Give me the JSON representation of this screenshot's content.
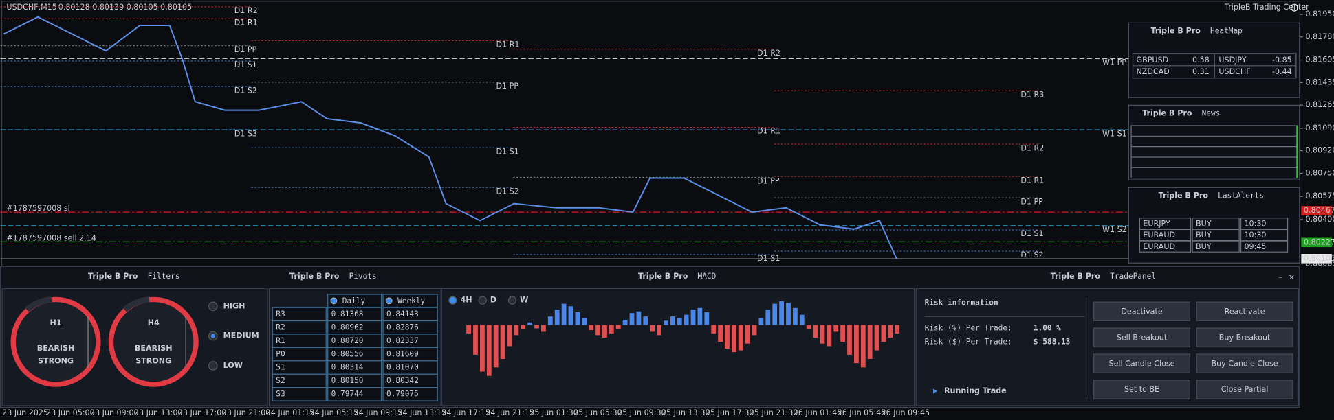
{
  "header": {
    "symbol": "USDCHF,M15",
    "ohlc": "0.80128 0.80139 0.80105 0.80105",
    "brand": "TripleB Trading Center"
  },
  "price_chart": {
    "ylim": [
      0.80065,
      0.8195
    ],
    "yticks": [
      {
        "value": 0.8195,
        "label": "0.81950"
      },
      {
        "value": 0.8178,
        "label": "0.81780"
      },
      0.81605,
      0.81435,
      0.81265,
      {
        "value": 0.8109,
        "label": "0.81090"
      },
      {
        "value": 0.8092,
        "label": "0.80920"
      },
      {
        "value": 0.8075,
        "label": "0.80750"
      },
      0.80575,
      {
        "value": 0.804,
        "label": "0.80400"
      },
      0.80065
    ],
    "markers": [
      0.80467,
      0.80227,
      0.80105
    ],
    "close": [
      0.81803,
      0.81931,
      0.81803,
      0.81674,
      0.81867,
      0.81867,
      0.8161,
      0.8129,
      0.81226,
      0.81226,
      0.8129,
      0.81162,
      0.8113,
      0.81033,
      0.80873,
      0.80521,
      0.80392,
      0.80521,
      0.80489,
      0.80489,
      0.80456,
      0.80713,
      0.80713,
      0.80585,
      0.80456,
      0.80489,
      0.8036,
      0.80328,
      0.80392,
      0.80104
    ],
    "levels": [
      "D1 R2",
      "D1 R1",
      "D1 PP",
      "D1 S1",
      "D1 S2",
      "D1 S3",
      "D1 R1",
      "D1 PP",
      "D1 S1",
      "D1 S2",
      "D1 R2",
      "D1 R1",
      "D1 PP",
      "D1 S1",
      "D1 R3",
      "D1 R2",
      "D1 R1",
      "D1 PP",
      "D1 S1",
      "D1 S2",
      "W1 PP",
      "W1 S1",
      "W1 S2"
    ],
    "orders": [
      "#1787597008 sl",
      "#1787597008 sell 2.14"
    ],
    "x_labels": [
      "23 Jun 2025",
      "23 Jun 05:00",
      "23 Jun 09:00",
      "23 Jun 13:00",
      "23 Jun 17:00",
      "23 Jun 21:00",
      "24 Jun 01:15",
      "24 Jun 05:15",
      "24 Jun 09:15",
      "24 Jun 13:15",
      "24 Jun 17:15",
      "24 Jun 21:15",
      "25 Jun 01:30",
      "25 Jun 05:30",
      "25 Jun 09:30",
      "25 Jun 13:30",
      "25 Jun 17:30",
      "25 Jun 21:30",
      "26 Jun 01:45",
      "26 Jun 05:45",
      "26 Jun 09:45"
    ]
  },
  "heatmap": {
    "brand": "Triple B Pro",
    "title": "HeatMap",
    "cells": [
      [
        "GBPUSD",
        "0.58"
      ],
      [
        "USDJPY",
        "-0.85"
      ],
      [
        "NZDCAD",
        "0.31"
      ],
      [
        "USDCHF",
        "-0.44"
      ]
    ]
  },
  "news": {
    "brand": "Triple B Pro",
    "title": "News"
  },
  "alerts": {
    "brand": "Triple B Pro",
    "title": "LastAlerts",
    "rows": [
      [
        "EURJPY",
        "BUY",
        "10:30"
      ],
      [
        "EURAUD",
        "BUY",
        "10:30"
      ],
      [
        "EURAUD",
        "BUY",
        "09:45"
      ]
    ]
  },
  "filters": {
    "brand": "Triple B Pro",
    "title": "Filters",
    "gauges": [
      {
        "tf": "H1",
        "state": "BEARISH",
        "strength": "STRONG"
      },
      {
        "tf": "H4",
        "state": "BEARISH",
        "strength": "STRONG"
      }
    ],
    "options": [
      "HIGH",
      "MEDIUM",
      "LOW"
    ],
    "selected_option": 1
  },
  "pivots": {
    "brand": "Triple B Pro",
    "title": "Pivots",
    "columns": [
      "Daily",
      "Weekly"
    ],
    "rows": [
      [
        "R3",
        "0.81368",
        "0.84143"
      ],
      [
        "R2",
        "0.80962",
        "0.82876"
      ],
      [
        "R1",
        "0.80720",
        "0.82337"
      ],
      [
        "P0",
        "0.80556",
        "0.81609"
      ],
      [
        "S1",
        "0.80314",
        "0.81070"
      ],
      [
        "S2",
        "0.80150",
        "0.80342"
      ],
      [
        "S3",
        "0.79744",
        "0.79075"
      ]
    ]
  },
  "macd": {
    "brand": "Triple B Pro",
    "title": "MACD",
    "timeframes": [
      "4H",
      "D",
      "W"
    ],
    "selected_timeframe": 0,
    "histogram": [
      -10,
      -35,
      -55,
      -60,
      -50,
      -40,
      -25,
      -12,
      -5,
      3,
      -4,
      -8,
      10,
      18,
      25,
      22,
      15,
      8,
      -6,
      -12,
      -15,
      -10,
      -5,
      6,
      14,
      16,
      10,
      -8,
      -12,
      5,
      10,
      8,
      12,
      18,
      20,
      15,
      -10,
      -20,
      -28,
      -32,
      -30,
      -22,
      -12,
      8,
      18,
      25,
      28,
      26,
      20,
      12,
      -5,
      -15,
      -22,
      -25,
      -8,
      -20,
      -35,
      -45,
      -50,
      -40,
      -30,
      -20,
      -15,
      -10
    ]
  },
  "trade": {
    "brand": "Triple B Pro",
    "title": "TradePanel",
    "risk_title": "Risk information",
    "risk_rows": [
      [
        "Risk (%) Per Trade:",
        "1.00 %"
      ],
      [
        "Risk ($) Per Trade:",
        "$ 588.13"
      ]
    ],
    "running": "Running Trade",
    "buttons": [
      "Deactivate",
      "Reactivate",
      "Sell Breakout",
      "Buy Breakout",
      "Sell Candle Close",
      "Buy Candle Close",
      "Set to BE",
      "Close Partial"
    ]
  }
}
